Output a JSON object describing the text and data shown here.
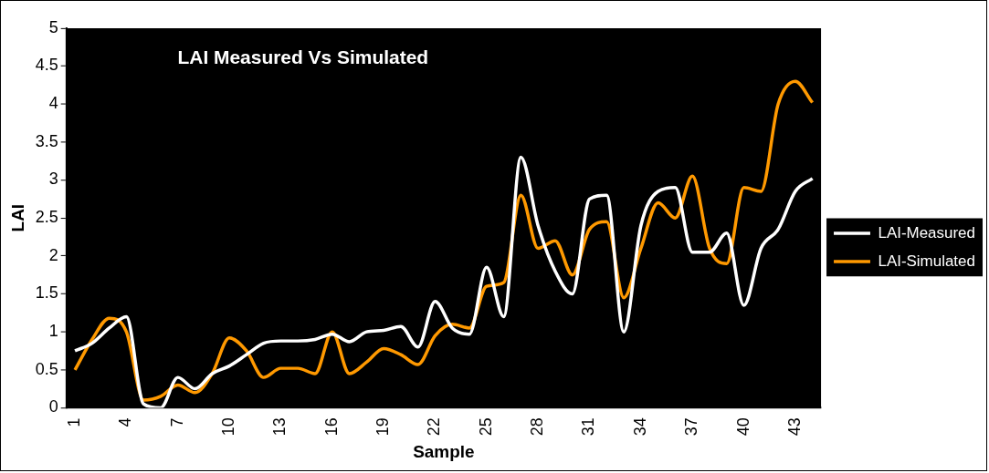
{
  "chart_data": {
    "type": "line",
    "title": "LAI Measured Vs Simulated",
    "xlabel": "Sample",
    "ylabel": "LAI",
    "categories": [
      "1",
      null,
      null,
      "4",
      null,
      null,
      "7",
      null,
      null,
      "10",
      null,
      null,
      "13",
      null,
      null,
      "16",
      null,
      null,
      "19",
      null,
      null,
      "22",
      null,
      null,
      "25",
      null,
      null,
      "28",
      null,
      null,
      "31",
      null,
      null,
      "34",
      null,
      null,
      "37",
      null,
      null,
      "40",
      null,
      null,
      "43",
      null
    ],
    "series": [
      {
        "name": "LAI-Measured",
        "color": "#ffffff",
        "values": [
          0.75,
          0.85,
          1.05,
          1.2,
          0.05,
          0.0,
          0.4,
          0.25,
          0.45,
          0.55,
          0.7,
          0.85,
          0.88,
          0.88,
          0.9,
          0.97,
          0.87,
          1.0,
          1.02,
          1.07,
          0.8,
          1.4,
          1.05,
          0.97,
          1.85,
          1.2,
          3.3,
          2.4,
          1.8,
          1.5,
          2.75,
          2.8,
          1.0,
          2.4,
          2.85,
          2.9,
          2.05,
          2.05,
          2.3,
          1.35,
          2.1,
          2.35,
          2.85,
          3.02
        ]
      },
      {
        "name": "LAI-Simulated",
        "color": "#ff9900",
        "values": [
          0.5,
          0.9,
          1.18,
          1.0,
          0.1,
          0.15,
          0.3,
          0.2,
          0.45,
          0.92,
          0.75,
          0.4,
          0.52,
          0.52,
          0.45,
          1.0,
          0.45,
          0.6,
          0.78,
          0.7,
          0.57,
          0.95,
          1.1,
          1.05,
          1.6,
          1.65,
          2.8,
          2.1,
          2.2,
          1.75,
          2.35,
          2.45,
          1.45,
          2.1,
          2.7,
          2.5,
          3.05,
          2.1,
          1.9,
          2.9,
          2.85,
          4.0,
          4.3,
          4.02
        ]
      }
    ],
    "ylim": [
      0,
      5
    ],
    "yticks": [
      0,
      0.5,
      1,
      1.5,
      2,
      2.5,
      3,
      3.5,
      4,
      4.5,
      5
    ],
    "grid": false,
    "legend": "right",
    "marker": "none",
    "line_style": "solid"
  }
}
